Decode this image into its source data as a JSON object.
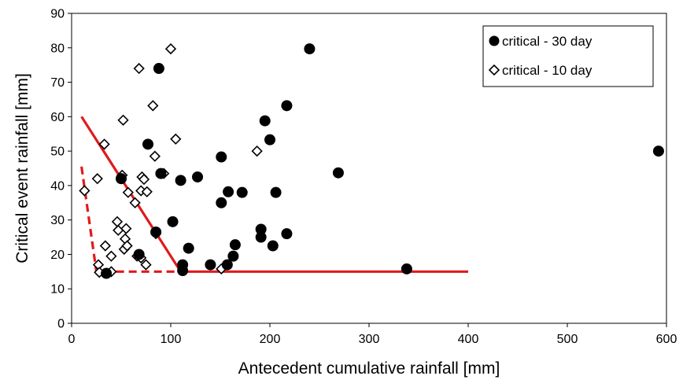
{
  "chart_data": {
    "type": "scatter",
    "title": "",
    "xlabel": "Antecedent cumulative rainfall [mm]",
    "ylabel": "Critical event rainfall [mm]",
    "xlim": [
      0,
      600
    ],
    "ylim": [
      0,
      90
    ],
    "x_ticks": [
      0,
      100,
      200,
      300,
      400,
      500,
      600
    ],
    "y_ticks": [
      0,
      10,
      20,
      30,
      40,
      50,
      60,
      70,
      80,
      90
    ],
    "grid": false,
    "legend_position": "top-right",
    "series": [
      {
        "name": "critical - 30 day",
        "marker": "filled-circle",
        "color": "#000000",
        "points": [
          [
            35,
            14.5
          ],
          [
            50,
            42
          ],
          [
            68,
            20
          ],
          [
            77,
            52
          ],
          [
            85,
            26.5
          ],
          [
            88,
            74
          ],
          [
            90,
            43.5
          ],
          [
            102,
            29.5
          ],
          [
            110,
            41.5
          ],
          [
            112,
            17
          ],
          [
            112,
            15.3
          ],
          [
            118,
            21.8
          ],
          [
            127,
            42.5
          ],
          [
            140,
            17
          ],
          [
            151,
            35
          ],
          [
            151,
            48.3
          ],
          [
            157,
            17
          ],
          [
            158,
            38.2
          ],
          [
            163,
            19.5
          ],
          [
            165,
            22.8
          ],
          [
            172,
            38
          ],
          [
            191,
            25
          ],
          [
            191,
            27.3
          ],
          [
            195,
            58.8
          ],
          [
            200,
            53.3
          ],
          [
            203,
            22.5
          ],
          [
            206,
            38
          ],
          [
            217,
            26
          ],
          [
            217,
            63.2
          ],
          [
            240,
            79.7
          ],
          [
            269,
            43.7
          ],
          [
            338,
            15.8
          ],
          [
            592,
            50
          ]
        ]
      },
      {
        "name": "critical - 10 day",
        "marker": "open-diamond",
        "color": "#000000",
        "points": [
          [
            13,
            38.5
          ],
          [
            26,
            42
          ],
          [
            27,
            17
          ],
          [
            28,
            14.8
          ],
          [
            33,
            52
          ],
          [
            34,
            22.5
          ],
          [
            40,
            15
          ],
          [
            40,
            19.5
          ],
          [
            46,
            29.5
          ],
          [
            47,
            27
          ],
          [
            51,
            43
          ],
          [
            52,
            59
          ],
          [
            53,
            21.5
          ],
          [
            54,
            24.5
          ],
          [
            55,
            27.5
          ],
          [
            56,
            22.5
          ],
          [
            57,
            38
          ],
          [
            64,
            35
          ],
          [
            66,
            19.5
          ],
          [
            68,
            74
          ],
          [
            70,
            19
          ],
          [
            70,
            38.5
          ],
          [
            71,
            42.5
          ],
          [
            73,
            41.8
          ],
          [
            75,
            17
          ],
          [
            76,
            38.2
          ],
          [
            82,
            63.2
          ],
          [
            84,
            48.5
          ],
          [
            85,
            26
          ],
          [
            93,
            43.5
          ],
          [
            100,
            79.7
          ],
          [
            105,
            53.5
          ],
          [
            151,
            15.8
          ],
          [
            187,
            50
          ]
        ]
      }
    ],
    "threshold_lines": [
      {
        "style": "solid",
        "color": "#e0191c",
        "points": [
          [
            10,
            60
          ],
          [
            110,
            15
          ],
          [
            400,
            15
          ]
        ]
      },
      {
        "style": "dashed",
        "color": "#e0191c",
        "points": [
          [
            10,
            45.5
          ],
          [
            25,
            15
          ],
          [
            110,
            15
          ]
        ]
      }
    ]
  }
}
